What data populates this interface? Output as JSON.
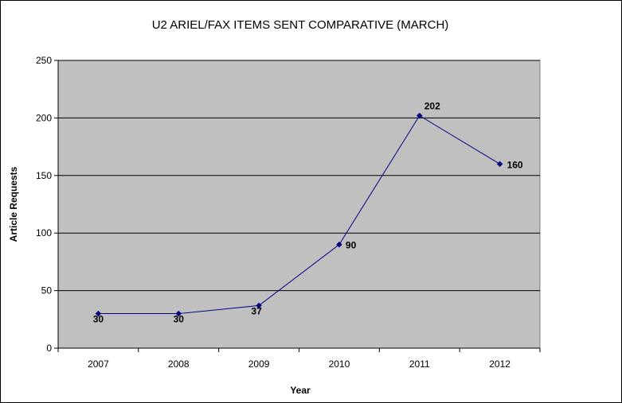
{
  "chart_data": {
    "type": "line",
    "title": "U2 ARIEL/FAX ITEMS SENT COMPARATIVE (MARCH)",
    "xlabel": "Year",
    "ylabel": "Article Requests",
    "categories": [
      "2007",
      "2008",
      "2009",
      "2010",
      "2011",
      "2012"
    ],
    "series": [
      {
        "values": [
          30,
          30,
          37,
          90,
          202,
          160
        ],
        "data_labels": [
          "30",
          "30",
          "37",
          "90",
          "202",
          "160"
        ],
        "color": "#000080",
        "marker": "diamond"
      }
    ],
    "ylim": [
      0,
      250
    ],
    "yticks": [
      0,
      50,
      100,
      150,
      200,
      250
    ],
    "ytick_labels": [
      "0",
      "50",
      "100",
      "150",
      "200",
      "250"
    ],
    "grid": true,
    "legend": "none",
    "plot_background": "#c0c0c0",
    "gridline_color": "#000000"
  }
}
